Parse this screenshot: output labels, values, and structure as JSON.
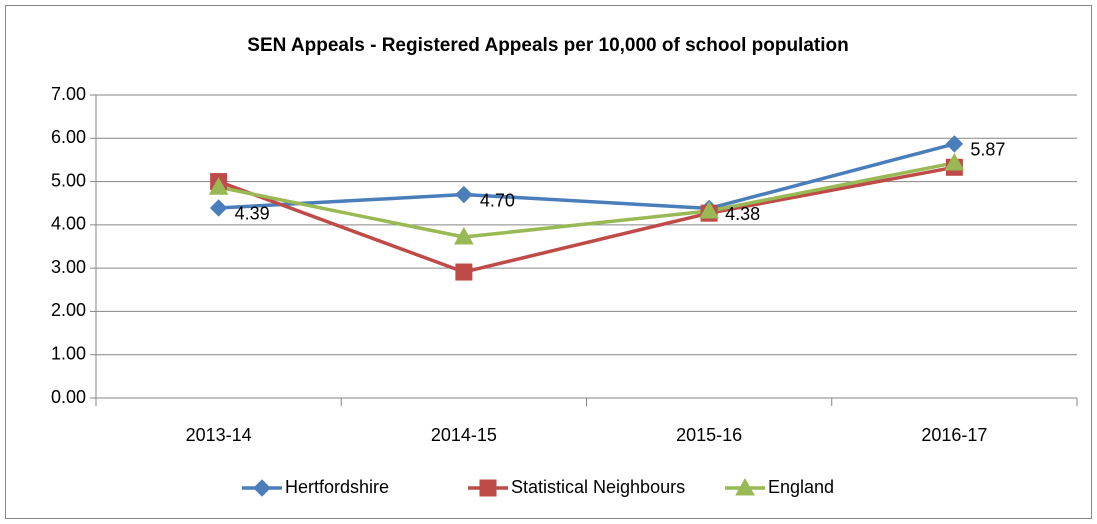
{
  "chart_data": {
    "type": "line",
    "title": "SEN Appeals - Registered Appeals per 10,000 of school population",
    "categories": [
      "2013-14",
      "2014-15",
      "2015-16",
      "2016-17"
    ],
    "series": [
      {
        "name": "Hertfordshire",
        "color": "#4a7ebb",
        "marker": "diamond",
        "values": [
          4.39,
          4.7,
          4.38,
          5.87
        ],
        "value_labels": [
          "4.39",
          "4.70",
          "4.38",
          "5.87"
        ]
      },
      {
        "name": "Statistical Neighbours",
        "color": "#be4b48",
        "marker": "square",
        "values": [
          5.0,
          2.91,
          4.27,
          5.33
        ]
      },
      {
        "name": "England",
        "color": "#98b954",
        "marker": "triangle",
        "values": [
          4.87,
          3.72,
          4.32,
          5.43
        ]
      }
    ],
    "ylim": [
      0,
      7
    ],
    "yticks": [
      {
        "value": 0,
        "label": "0.00"
      },
      {
        "value": 1,
        "label": "1.00"
      },
      {
        "value": 2,
        "label": "2.00"
      },
      {
        "value": 3,
        "label": "3.00"
      },
      {
        "value": 4,
        "label": "4.00"
      },
      {
        "value": 5,
        "label": "5.00"
      },
      {
        "value": 6,
        "label": "6.00"
      },
      {
        "value": 7,
        "label": "7.00"
      }
    ],
    "grid": true,
    "legend": "bottom"
  }
}
